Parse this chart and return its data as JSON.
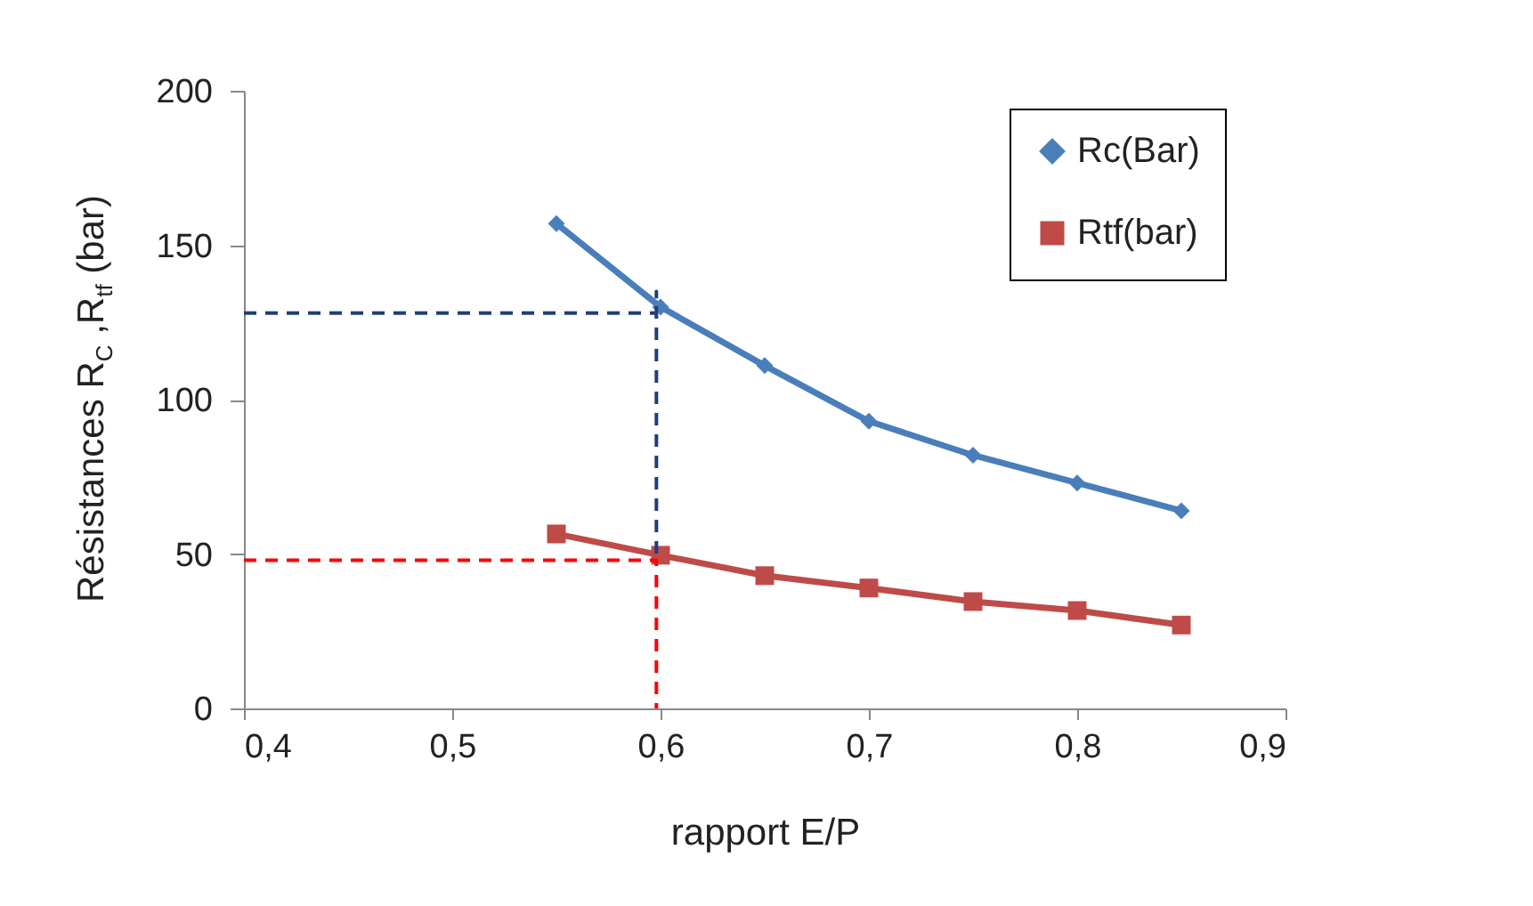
{
  "chart_data": {
    "type": "line",
    "xlabel": "rapport E/P",
    "ylabel": "Résistances  R$_{C}$ ,R$_{tf}$ (bar)",
    "xlim": [
      0.4,
      0.9
    ],
    "xticks": [
      {
        "value": 0.4,
        "label": "0,4"
      },
      {
        "value": 0.5,
        "label": "0,5"
      },
      {
        "value": 0.6,
        "label": "0,6"
      },
      {
        "value": 0.7,
        "label": "0,7"
      },
      {
        "value": 0.8,
        "label": "0,8"
      },
      {
        "value": 0.9,
        "label": "0,9"
      }
    ],
    "ylim": [
      0,
      200
    ],
    "yticks": [
      0,
      50,
      100,
      150,
      200
    ],
    "grid": false,
    "legend": "top right",
    "series": [
      {
        "name": "Rc(Bar)",
        "color": "#4a7ebb",
        "marker": "diamond",
        "line_style": "solid",
        "x": [
          0.55,
          0.6,
          0.65,
          0.7,
          0.75,
          0.8,
          0.85
        ],
        "values": [
          157,
          130,
          111,
          93,
          82,
          73,
          64
        ]
      },
      {
        "name": "Rtf(bar)",
        "color": "#be4b48",
        "marker": "square",
        "line_style": "solid",
        "x": [
          0.55,
          0.6,
          0.65,
          0.7,
          0.75,
          0.8,
          0.85
        ],
        "values": [
          56.5,
          49.6,
          43,
          39,
          34.6,
          31.7,
          27
        ]
      },
      {
        "color": "#1f3d7a",
        "marker": "none",
        "line_style": "dashed",
        "x": [
          0.4,
          0.598,
          0.598,
          0.598
        ],
        "values": [
          128,
          128,
          135,
          50
        ]
      },
      {
        "color": "#ff0000",
        "marker": "none",
        "line_style": "dashed",
        "x": [
          0.4,
          0.598,
          0.598
        ],
        "values": [
          48,
          48,
          0
        ]
      }
    ]
  }
}
